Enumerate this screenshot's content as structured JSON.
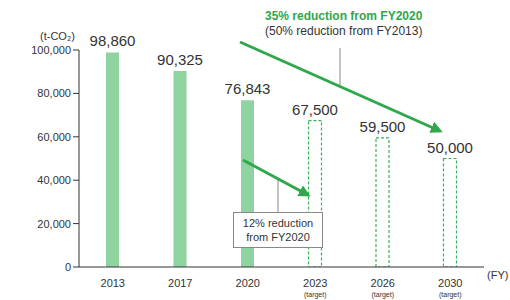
{
  "chart_data": {
    "type": "bar",
    "y_label": "(t-CO₂)",
    "x_label": "(FY)",
    "categories": [
      "2013",
      "2017",
      "2020",
      "2023",
      "2026",
      "2030"
    ],
    "category_notes": [
      null,
      null,
      null,
      "(target)",
      "(target)",
      "(target)"
    ],
    "series": [
      {
        "color": "#8fd3a0",
        "line_style": "solid",
        "values": [
          98860,
          90325,
          76843,
          null,
          null,
          null
        ],
        "value_labels": [
          "98,860",
          "90,325",
          "76,843",
          null,
          null,
          null
        ]
      },
      {
        "color": "#3ab05a",
        "line_style": "dashed",
        "values": [
          null,
          null,
          null,
          67500,
          59500,
          50000
        ],
        "value_labels": [
          null,
          null,
          null,
          "67,500",
          "59,500",
          "50,000"
        ]
      }
    ],
    "ylim": [
      0,
      100000
    ],
    "yticks": [
      0,
      {
        "value": 20000,
        "label": "20,000"
      },
      {
        "value": 40000,
        "label": "40,000"
      },
      {
        "value": 60000,
        "label": "60,000"
      },
      {
        "value": 80000,
        "label": "80,000"
      },
      {
        "value": 100000,
        "label": "100,000"
      }
    ],
    "grid": false,
    "data_labels": true,
    "annotations": [
      {
        "lines": [
          "35% reduction from FY2020",
          "(50% reduction from FY2013)"
        ],
        "color": "#2ea84a"
      },
      {
        "lines": [
          "12% reduction",
          "from FY2020"
        ]
      }
    ]
  }
}
